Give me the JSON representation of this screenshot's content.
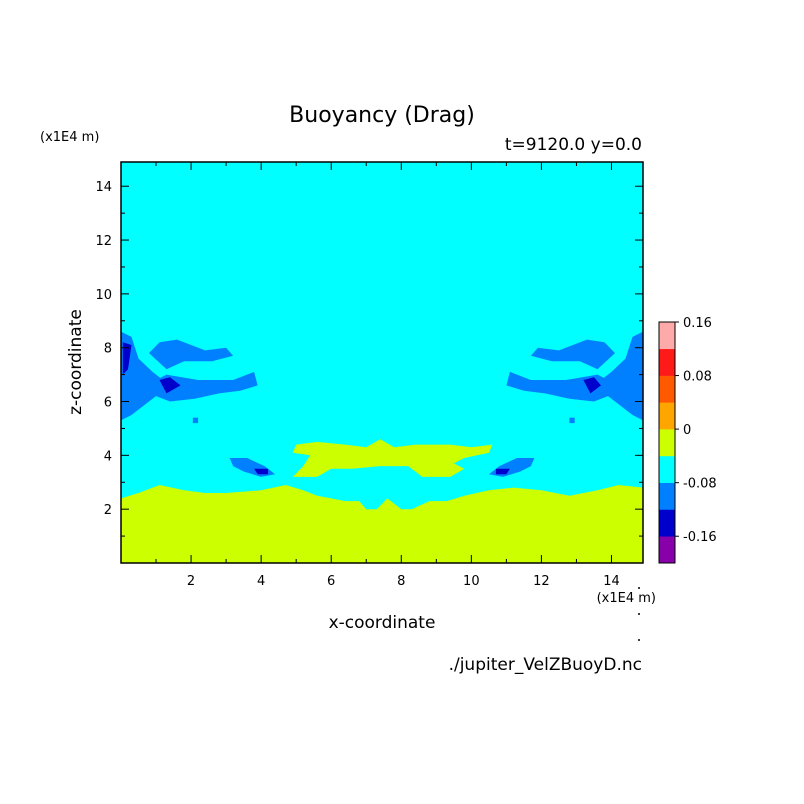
{
  "chart_data": {
    "type": "heatmap",
    "title": "Buoyancy (Drag)",
    "subtitle": "t=9120.0 y=0.0",
    "xlabel": "x-coordinate",
    "ylabel": "z-coordinate",
    "x_unit": "(x1E4 m)",
    "y_unit": "(x1E4 m)",
    "source_file": "./jupiter_VelZBuoyD.nc",
    "xlim": [
      0,
      14.9
    ],
    "ylim": [
      0,
      14.9
    ],
    "x_ticks": [
      2,
      4,
      6,
      8,
      10,
      12,
      14
    ],
    "y_ticks": [
      2,
      4,
      6,
      8,
      10,
      12,
      14
    ],
    "x_tick_labels": [
      "2",
      "4",
      "6",
      "8",
      "10",
      "12",
      "14"
    ],
    "y_tick_labels": [
      "2",
      "4",
      "6",
      "8",
      "10",
      "12",
      "14"
    ],
    "background_level_color": "#00ffff",
    "colorbar": {
      "levels": [
        {
          "color": "#8800aa"
        },
        {
          "color": "#0000cc"
        },
        {
          "color": "#0080ff"
        },
        {
          "color": "#00ffff"
        },
        {
          "color": "#ccff00"
        },
        {
          "color": "#ffa500"
        },
        {
          "color": "#ff5a00"
        },
        {
          "color": "#ff1a1a"
        },
        {
          "color": "#ffaaaa"
        }
      ],
      "labels": [
        {
          "text": "-0.16",
          "value": -0.16
        },
        {
          "text": "-0.08",
          "value": -0.08
        },
        {
          "text": "0",
          "value": 0
        },
        {
          "text": "0.08",
          "value": 0.08
        },
        {
          "text": "0.16",
          "value": 0.16
        }
      ]
    },
    "regions": [
      {
        "name": "positive-lower-layer",
        "color": "#ccff00",
        "points": [
          [
            0,
            2.4
          ],
          [
            0.5,
            2.6
          ],
          [
            1.1,
            2.9
          ],
          [
            1.8,
            2.7
          ],
          [
            2.4,
            2.6
          ],
          [
            3.0,
            2.6
          ],
          [
            4.0,
            2.7
          ],
          [
            4.7,
            2.9
          ],
          [
            5.2,
            2.7
          ],
          [
            5.6,
            2.5
          ],
          [
            6.0,
            2.4
          ],
          [
            6.4,
            2.3
          ],
          [
            6.8,
            2.3
          ],
          [
            7.0,
            2.0
          ],
          [
            7.3,
            2.0
          ],
          [
            7.6,
            2.4
          ],
          [
            8.0,
            2.0
          ],
          [
            8.3,
            2.0
          ],
          [
            8.8,
            2.3
          ],
          [
            9.3,
            2.3
          ],
          [
            9.8,
            2.5
          ],
          [
            10.5,
            2.7
          ],
          [
            11.2,
            2.8
          ],
          [
            12.0,
            2.7
          ],
          [
            12.8,
            2.5
          ],
          [
            13.6,
            2.7
          ],
          [
            14.2,
            2.9
          ],
          [
            14.9,
            2.8
          ],
          [
            14.9,
            0
          ],
          [
            0,
            0
          ]
        ]
      },
      {
        "name": "positive-upper-band",
        "color": "#ccff00",
        "points": [
          [
            5.0,
            4.4
          ],
          [
            5.6,
            4.5
          ],
          [
            6.4,
            4.4
          ],
          [
            7.0,
            4.3
          ],
          [
            7.4,
            4.6
          ],
          [
            7.8,
            4.3
          ],
          [
            8.4,
            4.4
          ],
          [
            9.4,
            4.4
          ],
          [
            10.0,
            4.3
          ],
          [
            10.6,
            4.4
          ],
          [
            10.5,
            4.1
          ],
          [
            9.8,
            3.9
          ],
          [
            9.5,
            3.7
          ],
          [
            9.8,
            3.5
          ],
          [
            9.4,
            3.2
          ],
          [
            8.6,
            3.2
          ],
          [
            8.2,
            3.6
          ],
          [
            7.4,
            3.6
          ],
          [
            6.6,
            3.5
          ],
          [
            6.0,
            3.5
          ],
          [
            5.6,
            3.2
          ],
          [
            4.9,
            3.2
          ],
          [
            5.2,
            3.6
          ],
          [
            5.4,
            4.0
          ],
          [
            4.9,
            4.1
          ]
        ]
      },
      {
        "name": "negative-left-wall",
        "color": "#0080ff",
        "points": [
          [
            0,
            8.6
          ],
          [
            0.3,
            8.4
          ],
          [
            0.5,
            7.6
          ],
          [
            0.9,
            7.1
          ],
          [
            1.2,
            6.8
          ],
          [
            1.0,
            6.2
          ],
          [
            0.6,
            5.8
          ],
          [
            0.3,
            5.5
          ],
          [
            0,
            5.3
          ]
        ]
      },
      {
        "name": "negative-left-band-upper",
        "color": "#0080ff",
        "points": [
          [
            0.8,
            7.8
          ],
          [
            1.1,
            8.2
          ],
          [
            1.6,
            8.3
          ],
          [
            2.4,
            7.9
          ],
          [
            3.0,
            8.0
          ],
          [
            3.2,
            7.7
          ],
          [
            2.6,
            7.5
          ],
          [
            1.8,
            7.5
          ],
          [
            1.3,
            7.2
          ]
        ]
      },
      {
        "name": "negative-left-band-lower",
        "color": "#0080ff",
        "points": [
          [
            1.0,
            6.8
          ],
          [
            1.3,
            7.0
          ],
          [
            2.2,
            6.8
          ],
          [
            3.2,
            6.8
          ],
          [
            3.8,
            7.1
          ],
          [
            3.9,
            6.6
          ],
          [
            3.4,
            6.4
          ],
          [
            2.8,
            6.3
          ],
          [
            2.1,
            6.1
          ],
          [
            1.4,
            6.0
          ],
          [
            1.0,
            6.2
          ]
        ]
      },
      {
        "name": "negative-left-core",
        "color": "#0000cc",
        "points": [
          [
            0.05,
            8.2
          ],
          [
            0.3,
            8.1
          ],
          [
            0.2,
            7.2
          ],
          [
            0.05,
            7.0
          ]
        ]
      },
      {
        "name": "negative-left-core-2",
        "color": "#0000cc",
        "points": [
          [
            1.1,
            6.8
          ],
          [
            1.4,
            6.9
          ],
          [
            1.7,
            6.6
          ],
          [
            1.3,
            6.3
          ]
        ]
      },
      {
        "name": "negative-left-eddy",
        "color": "#0080ff",
        "points": [
          [
            3.1,
            3.9
          ],
          [
            3.6,
            3.9
          ],
          [
            4.1,
            3.6
          ],
          [
            4.4,
            3.3
          ],
          [
            4.0,
            3.2
          ],
          [
            3.5,
            3.4
          ],
          [
            3.2,
            3.6
          ]
        ]
      },
      {
        "name": "negative-left-eddy-core",
        "color": "#0000cc",
        "points": [
          [
            3.8,
            3.5
          ],
          [
            4.2,
            3.5
          ],
          [
            4.2,
            3.3
          ],
          [
            3.9,
            3.3
          ]
        ]
      },
      {
        "name": "negative-left-speck",
        "color": "#0080ff",
        "points": [
          [
            2.05,
            5.4
          ],
          [
            2.2,
            5.4
          ],
          [
            2.2,
            5.2
          ],
          [
            2.05,
            5.2
          ]
        ]
      },
      {
        "name": "negative-right-wall",
        "color": "#0080ff",
        "points": [
          [
            14.9,
            8.6
          ],
          [
            14.6,
            8.4
          ],
          [
            14.4,
            7.6
          ],
          [
            14.0,
            7.1
          ],
          [
            13.7,
            6.8
          ],
          [
            13.9,
            6.2
          ],
          [
            14.3,
            5.8
          ],
          [
            14.6,
            5.5
          ],
          [
            14.9,
            5.3
          ]
        ]
      },
      {
        "name": "negative-right-band-upper",
        "color": "#0080ff",
        "points": [
          [
            14.1,
            7.8
          ],
          [
            13.8,
            8.2
          ],
          [
            13.3,
            8.3
          ],
          [
            12.5,
            7.9
          ],
          [
            11.9,
            8.0
          ],
          [
            11.7,
            7.7
          ],
          [
            12.3,
            7.5
          ],
          [
            13.1,
            7.5
          ],
          [
            13.6,
            7.2
          ]
        ]
      },
      {
        "name": "negative-right-band-lower",
        "color": "#0080ff",
        "points": [
          [
            13.9,
            6.8
          ],
          [
            13.6,
            7.0
          ],
          [
            12.7,
            6.8
          ],
          [
            11.7,
            6.8
          ],
          [
            11.1,
            7.1
          ],
          [
            11.0,
            6.6
          ],
          [
            11.5,
            6.4
          ],
          [
            12.1,
            6.3
          ],
          [
            12.8,
            6.1
          ],
          [
            13.5,
            6.0
          ],
          [
            13.9,
            6.2
          ]
        ]
      },
      {
        "name": "negative-right-core",
        "color": "#0000cc",
        "points": [
          [
            13.2,
            6.8
          ],
          [
            13.5,
            6.9
          ],
          [
            13.7,
            6.6
          ],
          [
            13.4,
            6.3
          ]
        ]
      },
      {
        "name": "negative-right-eddy",
        "color": "#0080ff",
        "points": [
          [
            11.8,
            3.9
          ],
          [
            11.3,
            3.9
          ],
          [
            10.8,
            3.6
          ],
          [
            10.5,
            3.3
          ],
          [
            10.9,
            3.2
          ],
          [
            11.4,
            3.4
          ],
          [
            11.7,
            3.6
          ]
        ]
      },
      {
        "name": "negative-right-eddy-core",
        "color": "#0000cc",
        "points": [
          [
            11.1,
            3.5
          ],
          [
            10.7,
            3.5
          ],
          [
            10.7,
            3.3
          ],
          [
            11.0,
            3.3
          ]
        ]
      },
      {
        "name": "negative-right-speck",
        "color": "#0080ff",
        "points": [
          [
            12.8,
            5.4
          ],
          [
            12.95,
            5.4
          ],
          [
            12.95,
            5.2
          ],
          [
            12.8,
            5.2
          ]
        ]
      }
    ]
  }
}
